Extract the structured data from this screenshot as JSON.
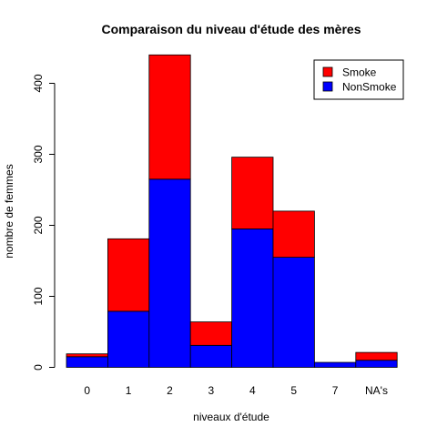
{
  "chart_data": {
    "type": "bar",
    "stacked": true,
    "title": "Comparaison du niveau d'étude des mères",
    "xlabel": "niveaux d'étude",
    "ylabel": "nombre de femmes",
    "categories": [
      "0",
      "1",
      "2",
      "3",
      "4",
      "5",
      "7",
      "NA's"
    ],
    "series": [
      {
        "name": "NonSmoke",
        "color": "#0000FF",
        "values": [
          15,
          79,
          265,
          31,
          195,
          155,
          7,
          10
        ]
      },
      {
        "name": "Smoke",
        "color": "#FF0000",
        "values": [
          4,
          102,
          175,
          33,
          101,
          65,
          0,
          11
        ]
      }
    ],
    "ylim": [
      0,
      440
    ],
    "yticks": [
      0,
      100,
      200,
      300,
      400
    ],
    "legend_position": "top-right",
    "legend_order": [
      "Smoke",
      "NonSmoke"
    ],
    "grid": false
  }
}
